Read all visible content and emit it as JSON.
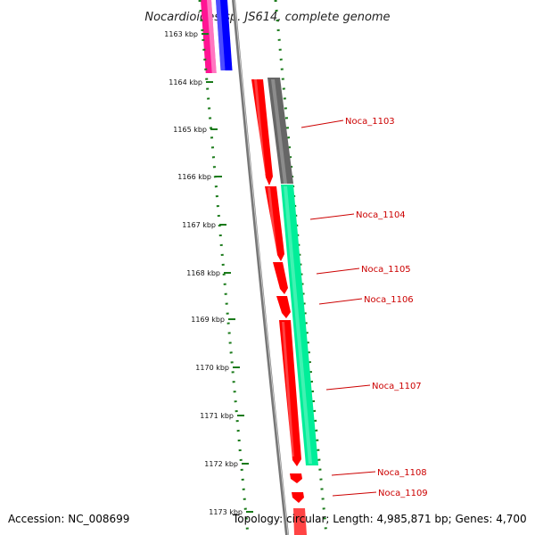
{
  "title": "Nocardioides sp. JS614, complete genome",
  "accession": "Accession: NC_008699",
  "topology": "Topology: circular; Length: 4,985,871 bp; Genes: 4,700",
  "ticks": [
    "1163 kbp",
    "1164 kbp",
    "1165 kbp",
    "1166 kbp",
    "1167 kbp",
    "1168 kbp",
    "1169 kbp",
    "1170 kbp",
    "1171 kbp",
    "1172 kbp",
    "1173 kbp"
  ],
  "genes": [
    {
      "label": "Noca_1103"
    },
    {
      "label": "Noca_1104"
    },
    {
      "label": "Noca_1105"
    },
    {
      "label": "Noca_1106"
    },
    {
      "label": "Noca_1107"
    },
    {
      "label": "Noca_1108"
    },
    {
      "label": "Noca_1109"
    }
  ],
  "colors": {
    "cds": "#ff0000",
    "gene_grey": "#666666",
    "gene_green": "#00ee99",
    "magenta": "#ff1493",
    "blue": "#0000ff",
    "backbone": "#777777",
    "gc_dots": "#1a7a1a",
    "label": "#cc0000"
  }
}
